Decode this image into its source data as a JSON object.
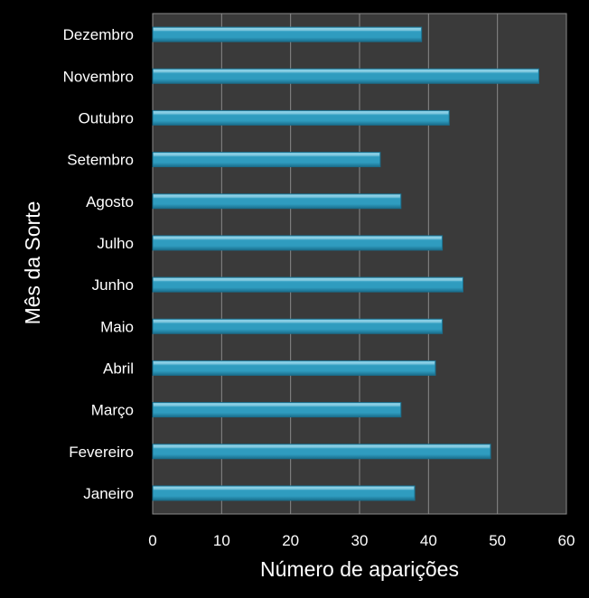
{
  "chart_data": {
    "type": "bar",
    "orientation": "horizontal",
    "categories": [
      "Janeiro",
      "Fevereiro",
      "Março",
      "Abril",
      "Maio",
      "Junho",
      "Julho",
      "Agosto",
      "Setembro",
      "Outubro",
      "Novembro",
      "Dezembro"
    ],
    "values": [
      38,
      49,
      36,
      41,
      42,
      45,
      42,
      36,
      33,
      43,
      56,
      39
    ],
    "xlabel": "Número de aparições",
    "ylabel": "Mês da Sorte",
    "xlim": [
      0,
      60
    ],
    "xticks": [
      0,
      10,
      20,
      30,
      40,
      50,
      60
    ],
    "grid": "vertical",
    "legend": "none"
  },
  "colors": {
    "background": "#000000",
    "plot_area": "#3a3a3a",
    "bar": "#2f9cbf",
    "bar_light": "#7fd0ea",
    "bar_dark": "#1a6e8c",
    "gridline": "#8a8a8a",
    "text": "#ffffff"
  }
}
